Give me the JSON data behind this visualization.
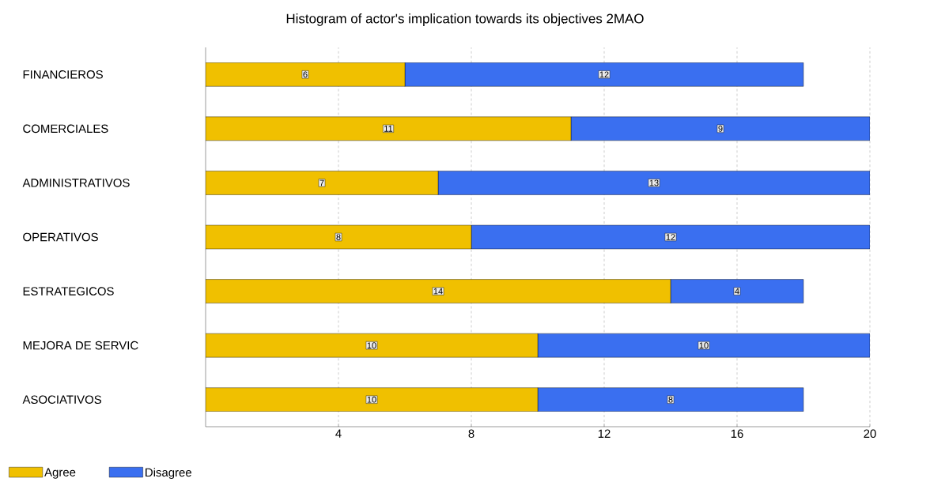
{
  "chart_data": {
    "type": "bar",
    "orientation": "horizontal",
    "stacked": true,
    "title": "Histogram of actor's implication towards its objectives 2MAO",
    "categories": [
      "FINANCIEROS",
      "COMERCIALES",
      "ADMINISTRATIVOS",
      "OPERATIVOS",
      "ESTRATEGICOS",
      "MEJORA DE SERVIC",
      "ASOCIATIVOS"
    ],
    "series": [
      {
        "name": "Agree",
        "color": "#f0c000",
        "values": [
          6,
          11,
          7,
          8,
          14,
          10,
          10
        ]
      },
      {
        "name": "Disagree",
        "color": "#3a6ff0",
        "values": [
          12,
          9,
          13,
          12,
          4,
          10,
          8
        ]
      }
    ],
    "xlim": [
      0,
      20
    ],
    "xticks": [
      4,
      8,
      12,
      16,
      20
    ],
    "grid": "x",
    "legend": "bottom left",
    "data_labels": true
  }
}
